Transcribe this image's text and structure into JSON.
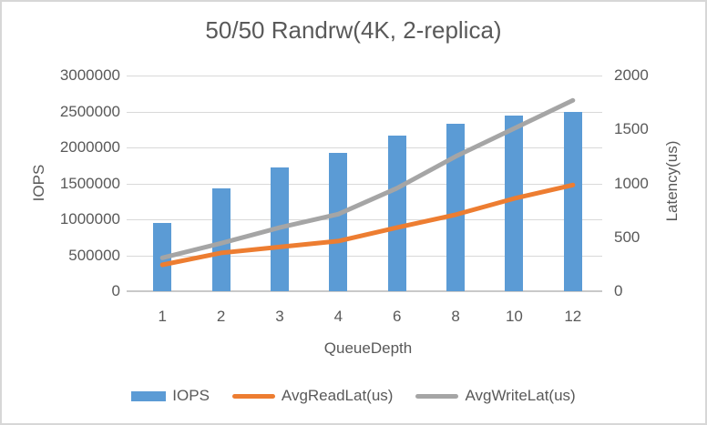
{
  "frame": {
    "background": "#FFFFFF",
    "border_color": "#D7D7D7"
  },
  "colors": {
    "text": "#595959",
    "gridline": "#D9D9D9",
    "axis_baseline": "#C9C9C9",
    "bar_blue": "#5B9BD5",
    "line_orange": "#ED7D31",
    "line_gray": "#A5A5A5"
  },
  "chart_data": {
    "type": "combo (bar + line, dual axis)",
    "title": "50/50 Randrw(4K, 2-replica)",
    "xlabel": "QueueDepth",
    "ylabel_left": "IOPS",
    "ylabel_right": "Latency(us)",
    "categories": [
      "1",
      "2",
      "3",
      "4",
      "6",
      "8",
      "10",
      "12"
    ],
    "left_axis": {
      "min": 0,
      "max": 3000000,
      "step": 500000,
      "tick_labels_top_to_bottom": [
        "3000000",
        "2500000",
        "2000000",
        "1500000",
        "1000000",
        "500000",
        "0"
      ]
    },
    "right_axis": {
      "min": 0,
      "max": 2000,
      "step": 500,
      "tick_labels_top_to_bottom": [
        "2000",
        "1500",
        "1000",
        "500",
        "0"
      ]
    },
    "grid": true,
    "legend_position": "bottom",
    "series": [
      {
        "name": "IOPS",
        "type": "bar",
        "axis": "left",
        "color": "#5B9BD5",
        "values": [
          950000,
          1430000,
          1720000,
          1920000,
          2170000,
          2330000,
          2440000,
          2500000
        ]
      },
      {
        "name": "AvgReadLat(us)",
        "type": "line",
        "axis": "right",
        "color": "#ED7D31",
        "values": [
          245,
          355,
          410,
          465,
          590,
          710,
          860,
          985
        ]
      },
      {
        "name": "AvgWriteLat(us)",
        "type": "line",
        "axis": "right",
        "color": "#A5A5A5",
        "values": [
          310,
          445,
          590,
          715,
          955,
          1250,
          1510,
          1770
        ]
      }
    ]
  }
}
